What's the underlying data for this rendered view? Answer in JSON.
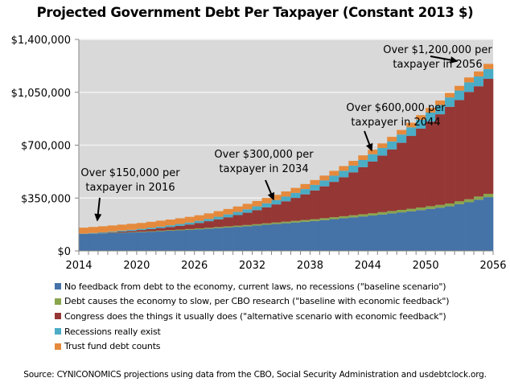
{
  "chart_data": {
    "type": "bar",
    "stacked": true,
    "title": "Projected Government Debt Per Taxpayer (Constant 2013 $)",
    "xlabel": "",
    "ylabel": "",
    "ylim": [
      0,
      1400000
    ],
    "yticks": [
      0,
      350000,
      700000,
      1050000,
      1400000
    ],
    "ytick_labels": [
      "$0",
      "$350,000",
      "$700,000",
      "$1,050,000",
      "$1,400,000"
    ],
    "xtick_labels": [
      "2014",
      "2020",
      "2026",
      "2032",
      "2038",
      "2044",
      "2050",
      "2056"
    ],
    "grid": true,
    "categories": [
      2014,
      2015,
      2016,
      2017,
      2018,
      2019,
      2020,
      2021,
      2022,
      2023,
      2024,
      2025,
      2026,
      2027,
      2028,
      2029,
      2030,
      2031,
      2032,
      2033,
      2034,
      2035,
      2036,
      2037,
      2038,
      2039,
      2040,
      2041,
      2042,
      2043,
      2044,
      2045,
      2046,
      2047,
      2048,
      2049,
      2050,
      2051,
      2052,
      2053,
      2054,
      2055,
      2056
    ],
    "series": [
      {
        "name": "No feedback from debt to the economy, current laws, no recessions (\"baseline scenario\")",
        "color": "#4572A7",
        "values": [
          112000,
          114000,
          116000,
          118000,
          120000,
          122000,
          124000,
          127000,
          130000,
          133000,
          136000,
          139000,
          143000,
          147000,
          151000,
          155000,
          159000,
          163000,
          168000,
          173000,
          178000,
          183000,
          188000,
          193000,
          198000,
          204000,
          210000,
          216000,
          222000,
          228000,
          234000,
          241000,
          248000,
          255000,
          262000,
          270000,
          278000,
          286000,
          295000,
          309000,
          322000,
          339000,
          356000
        ]
      },
      {
        "name": "Debt causes the economy to slow, per CBO research (\"baseline with economic feedback\")",
        "color": "#89A54E",
        "values": [
          0,
          500,
          1000,
          1500,
          2000,
          2500,
          3000,
          3500,
          4000,
          4500,
          5000,
          5500,
          6000,
          6500,
          7000,
          7500,
          8000,
          8500,
          9000,
          9500,
          10000,
          10500,
          11000,
          11500,
          12000,
          12500,
          13000,
          13500,
          14000,
          14500,
          15000,
          15500,
          16000,
          16500,
          17000,
          17500,
          18000,
          18500,
          19000,
          19500,
          20000,
          21000,
          22000
        ]
      },
      {
        "name": "Congress does the things it usually does (\"alternative scenario with economic feedback\")",
        "color": "#953735",
        "values": [
          0,
          1000,
          2000,
          4000,
          6000,
          8000,
          11000,
          14000,
          17000,
          21000,
          25000,
          30000,
          36000,
          43000,
          51000,
          60000,
          70000,
          81000,
          93000,
          106000,
          120000,
          135000,
          152000,
          170000,
          190000,
          211000,
          234000,
          258000,
          284000,
          312000,
          342000,
          374000,
          408000,
          444000,
          482000,
          522000,
          560000,
          600000,
          640000,
          670000,
          710000,
          730000,
          761000
        ]
      },
      {
        "name": "Recessions really exist",
        "color": "#4BACC6",
        "values": [
          2000,
          3000,
          4000,
          5000,
          6000,
          7000,
          8000,
          9000,
          10000,
          11000,
          12000,
          13000,
          14000,
          15000,
          17000,
          19000,
          21000,
          23000,
          25000,
          27000,
          29000,
          31000,
          33000,
          35000,
          37000,
          39000,
          41000,
          43000,
          45000,
          47000,
          49000,
          51000,
          53000,
          55000,
          57000,
          59000,
          60000,
          61000,
          62000,
          63000,
          64000,
          65000,
          65000
        ]
      },
      {
        "name": "Trust fund debt counts",
        "color": "#E58A3C",
        "values": [
          40000,
          40000,
          40000,
          40000,
          40000,
          40000,
          39000,
          39000,
          39000,
          38000,
          38000,
          38000,
          37000,
          37000,
          37000,
          36000,
          36000,
          36000,
          35000,
          35000,
          34000,
          34000,
          33000,
          33000,
          32000,
          32000,
          32000,
          31000,
          31000,
          31000,
          30000,
          30000,
          30000,
          30000,
          30000,
          30000,
          30000,
          30000,
          30000,
          31000,
          32000,
          33000,
          34000
        ]
      }
    ],
    "annotations": [
      {
        "lines": [
          "Over $150,000 per",
          "taxpayer in 2016"
        ],
        "target_year": 2016
      },
      {
        "lines": [
          "Over $300,000 per",
          "taxpayer in 2034"
        ],
        "target_year": 2034
      },
      {
        "lines": [
          "Over $600,000 per",
          "taxpayer in 2044"
        ],
        "target_year": 2044
      },
      {
        "lines": [
          "Over $1,200,000 per",
          "taxpayer in 2056"
        ],
        "target_year": 2056
      }
    ],
    "legend_position": "bottom",
    "source": "Source: CYNICONOMICS projections using data from the CBO, Social Security Administration and usdebtclock.org."
  }
}
